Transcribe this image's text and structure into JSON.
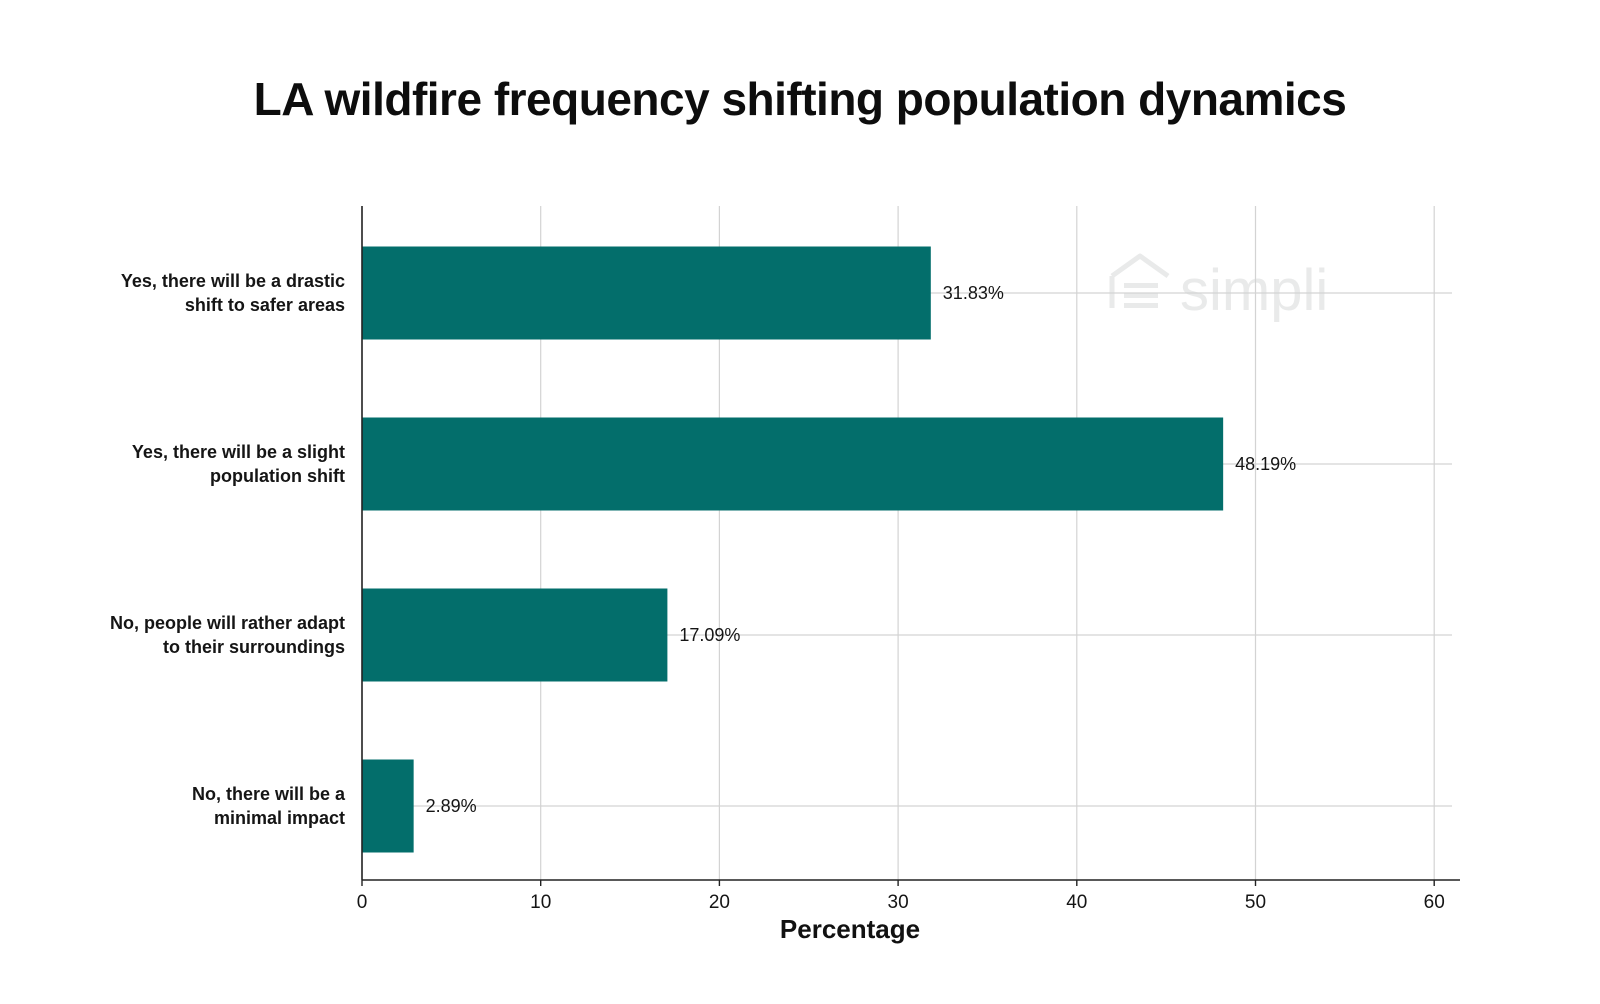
{
  "chart_data": {
    "type": "bar",
    "orientation": "horizontal",
    "title": "LA wildfire frequency shifting population dynamics",
    "xlabel": "Percentage",
    "ylabel": "",
    "xlim": [
      0,
      65
    ],
    "xticks": [
      0,
      10,
      20,
      30,
      40,
      50,
      60
    ],
    "grid": true,
    "categories": [
      [
        "Yes, there will be a drastic",
        "shift to safer areas"
      ],
      [
        "Yes, there will be a slight",
        "population shift"
      ],
      [
        "No, people will rather adapt",
        "to their surroundings"
      ],
      [
        "No, there will be a",
        "minimal impact"
      ]
    ],
    "values": [
      31.83,
      48.19,
      17.09,
      2.89
    ],
    "value_labels": [
      "31.83%",
      "48.19%",
      "17.09%",
      "2.89%"
    ],
    "bar_color": "#036e6b",
    "grid_color": "#d3d3d3",
    "axis_color": "#222222"
  },
  "watermark": {
    "text": "simpli",
    "icon": "house-logo-icon",
    "color": "#e9eaea"
  }
}
